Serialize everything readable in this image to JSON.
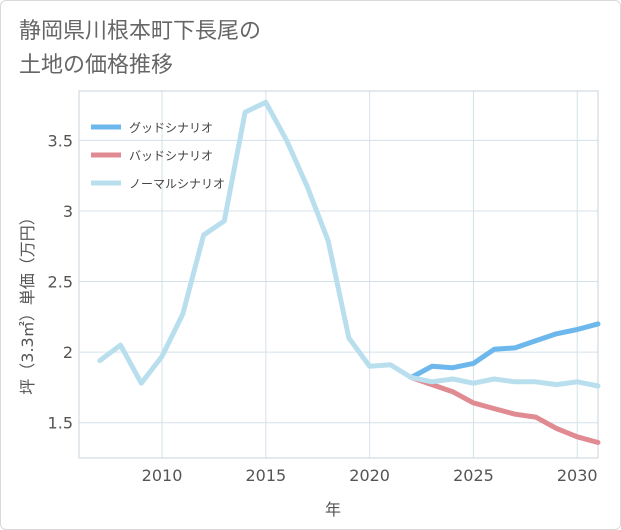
{
  "header": {
    "title": "静岡県川根本町下長尾の\n土地の価格推移"
  },
  "chart_data": {
    "type": "line",
    "title": "静岡県川根本町下長尾の土地の価格推移",
    "xlabel": "年",
    "ylabel": "坪（3.3㎡）単価（万円）",
    "xlim": [
      2006,
      2031
    ],
    "ylim": [
      1.25,
      3.85
    ],
    "x_ticks": [
      2010,
      2015,
      2020,
      2025,
      2030
    ],
    "y_ticks": [
      1.5,
      2,
      2.5,
      3,
      3.5
    ],
    "x_tick_labels": [
      "2010",
      "2015",
      "2020",
      "2025",
      "2030"
    ],
    "y_tick_labels": [
      "1.5",
      "2",
      "2.5",
      "3",
      "3.5"
    ],
    "grid": true,
    "legend_position": "top-left",
    "series": [
      {
        "name": "グッドシナリオ",
        "color": "#6cb8ec",
        "x": [
          2022,
          2023,
          2024,
          2025,
          2026,
          2027,
          2028,
          2029,
          2030,
          2031
        ],
        "y": [
          1.82,
          1.9,
          1.89,
          1.92,
          2.02,
          2.03,
          2.08,
          2.13,
          2.16,
          2.2
        ]
      },
      {
        "name": "バッドシナリオ",
        "color": "#e08a92",
        "x": [
          2022,
          2023,
          2024,
          2025,
          2026,
          2027,
          2028,
          2029,
          2030,
          2031
        ],
        "y": [
          1.82,
          1.77,
          1.72,
          1.64,
          1.6,
          1.56,
          1.54,
          1.46,
          1.4,
          1.36
        ]
      },
      {
        "name": "ノーマルシナリオ",
        "color": "#b9dfee",
        "x": [
          2007,
          2008,
          2009,
          2010,
          2011,
          2012,
          2013,
          2014,
          2015,
          2016,
          2017,
          2018,
          2019,
          2020,
          2021,
          2022,
          2023,
          2024,
          2025,
          2026,
          2027,
          2028,
          2029,
          2030,
          2031
        ],
        "y": [
          1.94,
          2.05,
          1.78,
          1.97,
          2.27,
          2.83,
          2.93,
          3.7,
          3.77,
          3.5,
          3.17,
          2.79,
          2.1,
          1.9,
          1.91,
          1.82,
          1.79,
          1.81,
          1.78,
          1.81,
          1.79,
          1.79,
          1.77,
          1.79,
          1.76
        ]
      }
    ]
  }
}
